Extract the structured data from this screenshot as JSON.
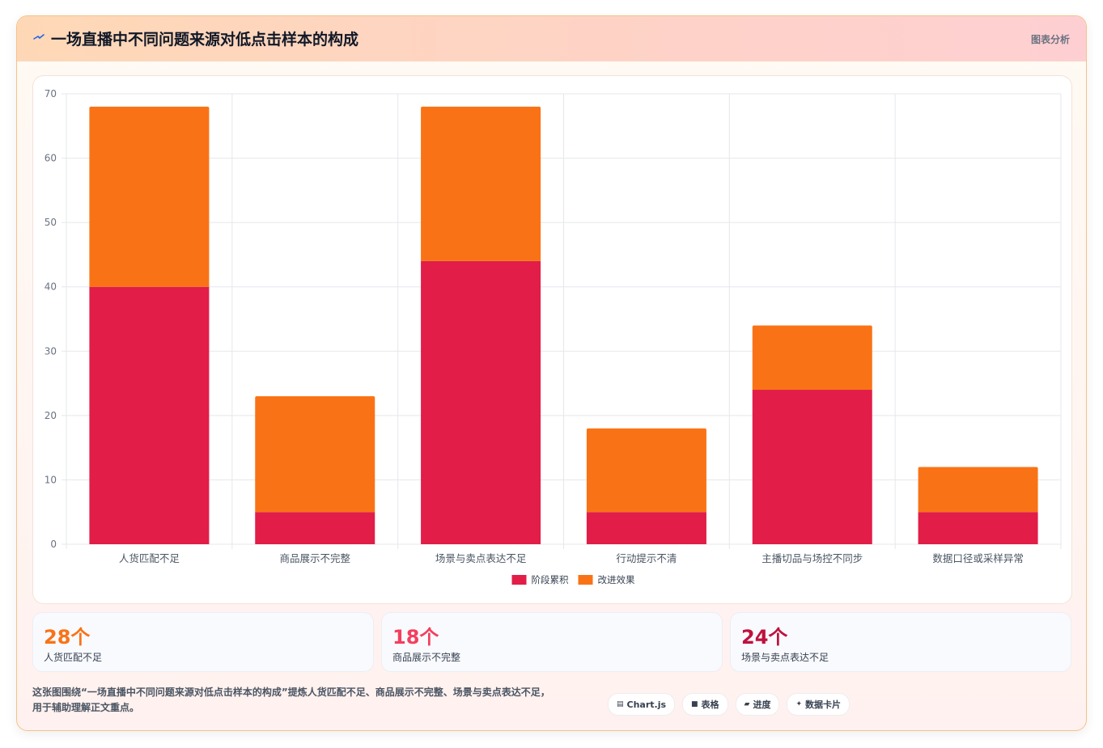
{
  "header": {
    "title": "一场直播中不同问题来源对低点击样本的构成",
    "tag": "图表分析",
    "icon": "sparkle-icon"
  },
  "chart_data": {
    "type": "bar",
    "stacked": true,
    "categories": [
      "人货匹配不足",
      "商品展示不完整",
      "场景与卖点表达不足",
      "行动提示不清",
      "主播切品与场控不同步",
      "数据口径或采样异常"
    ],
    "series": [
      {
        "name": "阶段累积",
        "color": "#e11d48",
        "values": [
          40,
          5,
          44,
          5,
          24,
          5
        ]
      },
      {
        "name": "改进效果",
        "color": "#f97316",
        "values": [
          28,
          18,
          24,
          13,
          10,
          7
        ]
      }
    ],
    "ylim": [
      0,
      70
    ],
    "yticks": [
      0,
      10,
      20,
      30,
      40,
      50,
      60,
      70
    ],
    "grid": true,
    "legend": "bottom"
  },
  "stats": [
    {
      "value": "28个",
      "label": "人货匹配不足",
      "color": "#f97316"
    },
    {
      "value": "18个",
      "label": "商品展示不完整",
      "color": "#f43f5e"
    },
    {
      "value": "24个",
      "label": "场景与卖点表达不足",
      "color": "#be123c"
    }
  ],
  "footnote": {
    "line1": "这张图围绕“一场直播中不同问题来源对低点击样本的构成”提炼人货匹配不足、商品展示不完整、场景与卖点表达不足，",
    "line2": "用于辅助理解正文重点。"
  },
  "chips": [
    {
      "icon": "▤",
      "icon_name": "chart-icon",
      "label": "Chart.js"
    },
    {
      "icon": "■",
      "icon_name": "table-icon",
      "label": "表格"
    },
    {
      "icon": "▰",
      "icon_name": "progress-icon",
      "label": "进度"
    },
    {
      "icon": "✦",
      "icon_name": "card-icon",
      "label": "数据卡片"
    }
  ]
}
